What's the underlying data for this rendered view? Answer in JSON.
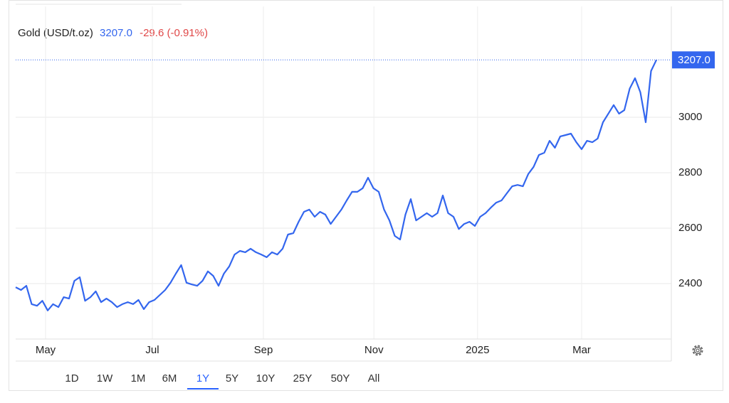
{
  "chart_data": {
    "type": "line",
    "title": "Gold (USD/t.oz)",
    "last_price": "3207.0",
    "change": "-29.6 (-0.91%)",
    "series": [
      {
        "name": "Gold",
        "color": "#3366ee",
        "values": [
          2387,
          2377,
          2392,
          2326,
          2320,
          2338,
          2303,
          2326,
          2315,
          2351,
          2346,
          2410,
          2423,
          2338,
          2351,
          2372,
          2333,
          2346,
          2333,
          2315,
          2326,
          2333,
          2326,
          2341,
          2308,
          2333,
          2341,
          2359,
          2377,
          2403,
          2436,
          2467,
          2403,
          2397,
          2392,
          2410,
          2444,
          2428,
          2392,
          2436,
          2462,
          2505,
          2518,
          2513,
          2526,
          2513,
          2505,
          2495,
          2513,
          2505,
          2526,
          2577,
          2582,
          2623,
          2659,
          2667,
          2641,
          2659,
          2649,
          2615,
          2641,
          2667,
          2700,
          2731,
          2731,
          2744,
          2782,
          2744,
          2731,
          2667,
          2628,
          2572,
          2559,
          2649,
          2705,
          2628,
          2641,
          2654,
          2641,
          2654,
          2718,
          2654,
          2641,
          2597,
          2615,
          2623,
          2608,
          2641,
          2654,
          2674,
          2692,
          2700,
          2726,
          2751,
          2756,
          2751,
          2795,
          2821,
          2864,
          2872,
          2915,
          2890,
          2931,
          2936,
          2941,
          2910,
          2885,
          2915,
          2910,
          2923,
          2982,
          3013,
          3044,
          3013,
          3026,
          3103,
          3141,
          3090,
          2982,
          3167,
          3207
        ]
      }
    ],
    "xlim": [
      0,
      120
    ],
    "xticks": [
      {
        "value": 5.6,
        "label": "May"
      },
      {
        "value": 25.6,
        "label": "Jul"
      },
      {
        "value": 46.4,
        "label": "Sep"
      },
      {
        "value": 67.1,
        "label": "Nov"
      },
      {
        "value": 86.5,
        "label": "2025"
      },
      {
        "value": 106,
        "label": "Mar"
      }
    ],
    "ylim": [
      2200,
      3400
    ],
    "yticks": [
      2400,
      2600,
      2800,
      3000
    ],
    "grid": true,
    "ranges": [
      "1D",
      "1W",
      "1M",
      "6M",
      "1Y",
      "5Y",
      "10Y",
      "25Y",
      "50Y",
      "All"
    ],
    "selected_range": 4
  }
}
